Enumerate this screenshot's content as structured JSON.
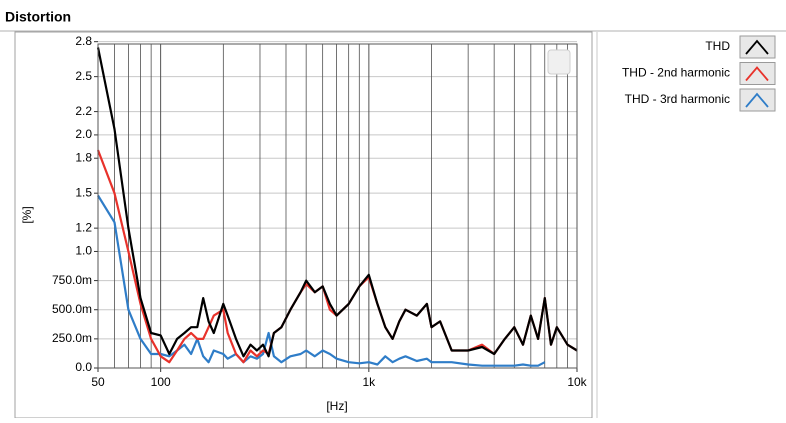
{
  "chart_data": {
    "type": "line",
    "title": "Distortion",
    "xlabel": "[Hz]",
    "ylabel": "[%]",
    "x": [
      50,
      60,
      70,
      80,
      90,
      100,
      110,
      120,
      130,
      140,
      150,
      160,
      170,
      180,
      200,
      210,
      230,
      250,
      270,
      290,
      310,
      330,
      350,
      380,
      420,
      470,
      500,
      550,
      600,
      650,
      700,
      800,
      900,
      1000,
      1100,
      1200,
      1300,
      1400,
      1500,
      1700,
      1900,
      2000,
      2200,
      2500,
      3000,
      3500,
      4000,
      4500,
      5000,
      5500,
      6000,
      6500,
      7000,
      7500,
      8000,
      9000,
      10000
    ],
    "series": [
      {
        "name": "THD",
        "color": "#000000",
        "values": [
          2.75,
          2.05,
          1.2,
          0.6,
          0.3,
          0.28,
          0.12,
          0.25,
          0.3,
          0.35,
          0.35,
          0.6,
          0.4,
          0.3,
          0.55,
          0.45,
          0.25,
          0.1,
          0.2,
          0.15,
          0.2,
          0.1,
          0.3,
          0.35,
          0.5,
          0.65,
          0.75,
          0.65,
          0.7,
          0.55,
          0.45,
          0.55,
          0.7,
          0.8,
          0.55,
          0.35,
          0.25,
          0.4,
          0.5,
          0.45,
          0.55,
          0.35,
          0.4,
          0.15,
          0.15,
          0.18,
          0.12,
          0.25,
          0.35,
          0.2,
          0.45,
          0.25,
          0.6,
          0.2,
          0.35,
          0.2,
          0.15
        ]
      },
      {
        "name": "THD - 2nd harmonic",
        "color": "#e8322b",
        "values": [
          1.87,
          1.5,
          1.0,
          0.55,
          0.25,
          0.1,
          0.05,
          0.15,
          0.25,
          0.3,
          0.25,
          0.25,
          0.35,
          0.45,
          0.5,
          0.3,
          0.12,
          0.05,
          0.15,
          0.1,
          0.15,
          0.12,
          0.3,
          0.35,
          0.5,
          0.65,
          0.72,
          0.65,
          0.7,
          0.5,
          0.45,
          0.55,
          0.7,
          0.78,
          0.55,
          0.35,
          0.25,
          0.4,
          0.5,
          0.45,
          0.55,
          0.35,
          0.4,
          0.15,
          0.15,
          0.2,
          0.12,
          0.25,
          0.35,
          0.2,
          0.45,
          0.25,
          0.6,
          0.2,
          0.35,
          0.2,
          0.15
        ]
      },
      {
        "name": "THD - 3rd harmonic",
        "color": "#2f7dc8",
        "values": [
          1.48,
          1.25,
          0.5,
          0.25,
          0.12,
          0.12,
          0.1,
          0.15,
          0.2,
          0.12,
          0.25,
          0.1,
          0.05,
          0.15,
          0.12,
          0.08,
          0.12,
          0.05,
          0.1,
          0.08,
          0.12,
          0.3,
          0.1,
          0.05,
          0.1,
          0.12,
          0.15,
          0.1,
          0.15,
          0.12,
          0.08,
          0.05,
          0.04,
          0.05,
          0.03,
          0.1,
          0.05,
          0.08,
          0.1,
          0.06,
          0.08,
          0.05,
          0.05,
          0.05,
          0.03,
          0.02,
          0.02,
          0.02,
          0.02,
          0.03,
          0.02,
          0.02,
          0.05,
          null,
          null,
          null,
          null
        ]
      }
    ],
    "xlog": true,
    "xlim": [
      50,
      10000
    ],
    "xticks": [
      50,
      100,
      {
        "value": 1000,
        "label": "1k"
      },
      {
        "value": 10000,
        "label": "10k"
      }
    ],
    "ylim": [
      0,
      2.78
    ],
    "yticks": [
      {
        "value": 0,
        "label": "0.0"
      },
      {
        "value": 0.25,
        "label": "250.0m"
      },
      {
        "value": 0.5,
        "label": "500.0m"
      },
      {
        "value": 0.75,
        "label": "750.0m"
      },
      {
        "value": 1,
        "label": "1.0"
      },
      1.2,
      1.5,
      1.8,
      {
        "value": 2,
        "label": "2.0"
      },
      2.2,
      2.5,
      2.8
    ],
    "grid": true
  }
}
